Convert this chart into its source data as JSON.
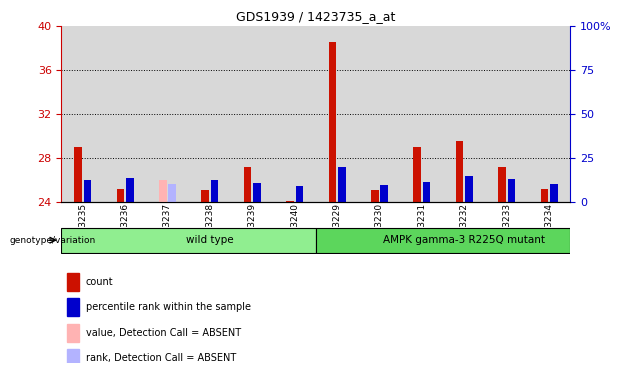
{
  "title": "GDS1939 / 1423735_a_at",
  "samples": [
    "GSM93235",
    "GSM93236",
    "GSM93237",
    "GSM93238",
    "GSM93239",
    "GSM93240",
    "GSM93229",
    "GSM93230",
    "GSM93231",
    "GSM93232",
    "GSM93233",
    "GSM93234"
  ],
  "red_values": [
    29.0,
    25.2,
    0.0,
    25.1,
    27.2,
    24.1,
    38.5,
    25.1,
    29.0,
    29.5,
    27.2,
    25.2
  ],
  "blue_values": [
    26.0,
    26.2,
    0.0,
    26.0,
    25.7,
    25.4,
    27.2,
    25.5,
    25.8,
    26.3,
    26.1,
    25.6
  ],
  "absent_red": [
    0,
    0,
    26.0,
    0,
    0,
    0,
    0,
    0,
    0,
    0,
    0,
    0
  ],
  "absent_blue": [
    0,
    0,
    25.6,
    0,
    0,
    0,
    0,
    0,
    0,
    0,
    0,
    0
  ],
  "groups": [
    {
      "label": "wild type",
      "start": 0,
      "end": 6,
      "color": "#90EE90"
    },
    {
      "label": "AMPK gamma-3 R225Q mutant",
      "start": 6,
      "end": 12,
      "color": "#5CD65C"
    }
  ],
  "ymin": 24,
  "ymax": 40,
  "yticks_left": [
    24,
    28,
    32,
    36,
    40
  ],
  "yticks_right": [
    0,
    25,
    50,
    75,
    100
  ],
  "yticks_right_labels": [
    "0",
    "25",
    "50",
    "75",
    "100%"
  ],
  "bar_width": 0.18,
  "bar_gap": 0.04,
  "left_axis_color": "#cc0000",
  "right_axis_color": "#0000cc",
  "bar_red": "#cc1100",
  "bar_blue": "#0000cc",
  "bar_absent_red": "#ffb3b3",
  "bar_absent_blue": "#b3b3ff",
  "col_bg": "#d8d8d8",
  "legend_items": [
    {
      "color": "#cc1100",
      "label": "count"
    },
    {
      "color": "#0000cc",
      "label": "percentile rank within the sample"
    },
    {
      "color": "#ffb3b3",
      "label": "value, Detection Call = ABSENT"
    },
    {
      "color": "#b3b3ff",
      "label": "rank, Detection Call = ABSENT"
    }
  ]
}
